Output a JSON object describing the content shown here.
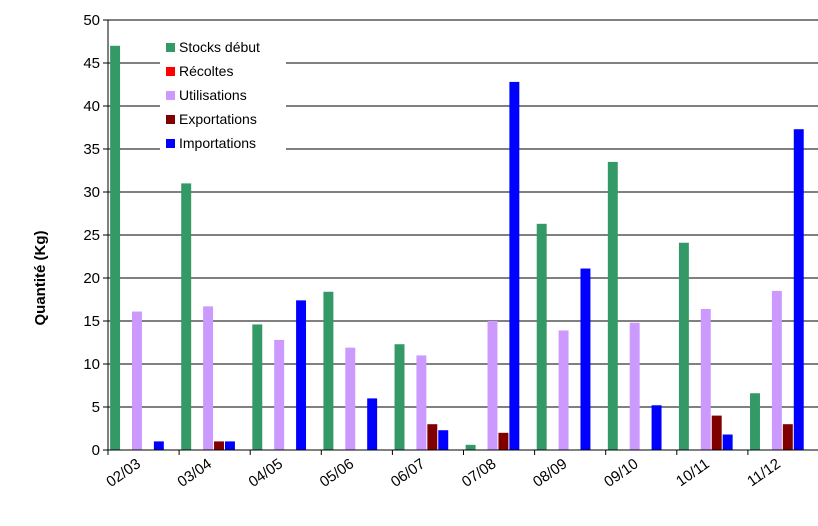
{
  "chart_data": {
    "type": "bar",
    "title": "",
    "xlabel": "",
    "ylabel": "Quantité (Kg)",
    "ylim": [
      0,
      50
    ],
    "yticks": [
      0,
      5,
      10,
      15,
      20,
      25,
      30,
      35,
      40,
      45,
      50
    ],
    "grid": "horizontal",
    "legend_position": "top-left",
    "categories": [
      "02/03",
      "03/04",
      "04/05",
      "05/06",
      "06/07",
      "07/08",
      "08/09",
      "09/10",
      "10/11",
      "11/12"
    ],
    "series": [
      {
        "name": "Stocks début",
        "color": "#339966",
        "values": [
          47,
          31,
          14.6,
          18.4,
          12.3,
          0.6,
          26.3,
          33.5,
          24.1,
          6.6
        ]
      },
      {
        "name": "Récoltes",
        "color": "#FF0000",
        "values": [
          0,
          0,
          0,
          0,
          0,
          0,
          0,
          0,
          0,
          0
        ]
      },
      {
        "name": "Utilisations",
        "color": "#CC99FF",
        "values": [
          16.1,
          16.7,
          12.8,
          11.9,
          11,
          15,
          13.9,
          14.8,
          16.4,
          18.5
        ]
      },
      {
        "name": "Exportations",
        "color": "#800000",
        "values": [
          0,
          1,
          0,
          0,
          3,
          2,
          0,
          0,
          4,
          3
        ]
      },
      {
        "name": "Importations",
        "color": "#0000FF",
        "values": [
          1,
          1,
          17.4,
          6,
          2.3,
          42.8,
          21.1,
          5.2,
          1.8,
          37.3
        ]
      }
    ]
  }
}
